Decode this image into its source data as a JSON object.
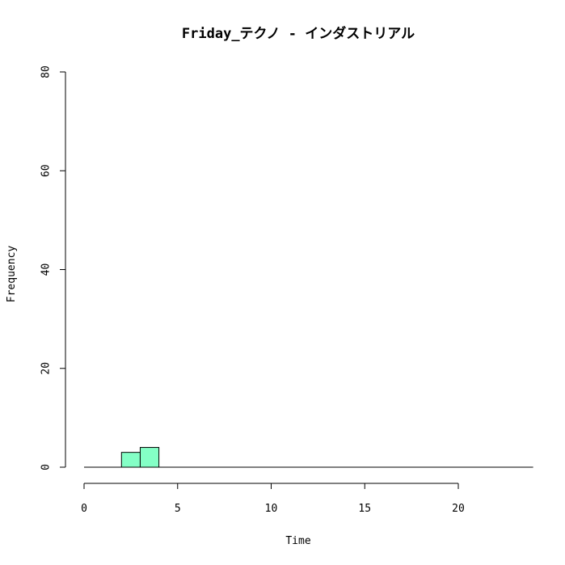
{
  "chart_data": {
    "type": "bar",
    "title": "Friday_テクノ - インダストリアル",
    "xlabel": "Time",
    "ylabel": "Frequency",
    "bins": [
      {
        "x0": 2,
        "x1": 3,
        "count": 3
      },
      {
        "x0": 3,
        "x1": 4,
        "count": 4
      }
    ],
    "baseline_x_range": [
      0,
      24
    ],
    "xlim": [
      0,
      24
    ],
    "ylim": [
      0,
      80
    ],
    "x_ticks": [
      0,
      5,
      10,
      15,
      20
    ],
    "y_ticks": [
      0,
      20,
      40,
      60,
      80
    ],
    "bar_color": "#84FFC6",
    "grid": false
  }
}
